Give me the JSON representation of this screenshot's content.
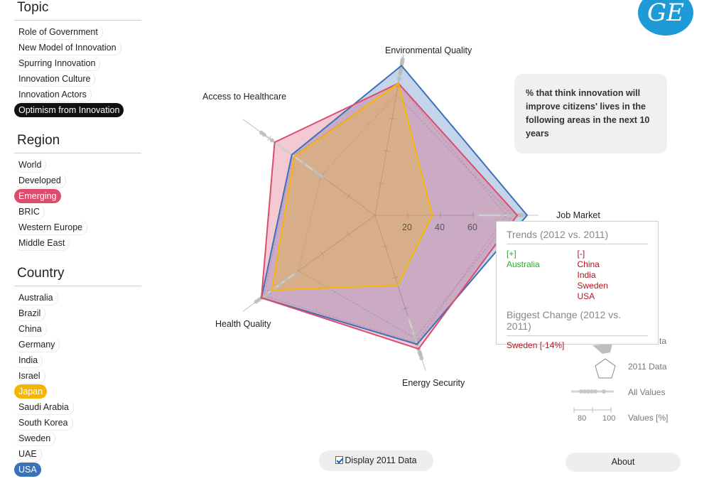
{
  "sidebar": {
    "topic_title": "Topic",
    "topics": [
      "Role of Government",
      "New Model of Innovation",
      "Spurring Innovation",
      "Innovation Culture",
      "Innovation Actors",
      "Optimism from Innovation"
    ],
    "region_title": "Region",
    "regions": [
      "World",
      "Developed",
      "Emerging",
      "BRIC",
      "Western Europe",
      "Middle East"
    ],
    "country_title": "Country",
    "countries": [
      "Australia",
      "Brazil",
      "China",
      "Germany",
      "India",
      "Israel",
      "Japan",
      "Saudi Arabia",
      "South Korea",
      "Sweden",
      "UAE",
      "USA"
    ]
  },
  "colors": {
    "topic_selected": "#111111",
    "emerging": "#dc4d6c",
    "japan": "#f5b500",
    "usa": "#3a72b8",
    "logo": "#1e9ad6"
  },
  "logo": {
    "icon": "ge-logo",
    "text": "GE"
  },
  "info_box": {
    "text": "% that think innovation will improve citizens' lives in the following areas in the next 10 years"
  },
  "chart_data": {
    "type": "radar",
    "axes": [
      "Environmental Quality",
      "Job Market",
      "Energy Security",
      "Health Quality",
      "Access to Healthcare"
    ],
    "ring_labels": [
      "20",
      "40",
      "60"
    ],
    "max": 100,
    "series": [
      {
        "name": "USA",
        "color": "#3a72b8",
        "values": [
          93,
          93,
          83,
          86,
          63
        ]
      },
      {
        "name": "Emerging",
        "color": "#dc4d6c",
        "values": [
          82,
          87,
          86,
          86,
          76
        ]
      },
      {
        "name": "Japan",
        "color": "#f5b500",
        "values": [
          82,
          35,
          45,
          78,
          61
        ]
      }
    ],
    "series_2011": [
      {
        "name": "USA",
        "color": "#3a72b8",
        "values": [
          75,
          84,
          79,
          58,
          41
        ]
      },
      {
        "name": "Emerging",
        "color": "#dc4d6c",
        "values": [
          82,
          80,
          82,
          84,
          62
        ]
      }
    ]
  },
  "tooltip": {
    "trends_title": "Trends (2012 vs. 2011)",
    "plus_header": "[+]",
    "plus_items": [
      "Australia"
    ],
    "minus_header": "[-]",
    "minus_items": [
      "China",
      "India",
      "Sweden",
      "USA"
    ],
    "change_title": "Biggest Change (2012 vs. 2011)",
    "change_value": "Sweden [-14%]"
  },
  "legend": {
    "partial": "ta",
    "data_2011": "2011 Data",
    "all_values": "All Values",
    "tick_80": "80",
    "tick_100": "100",
    "values_label": "Values [%]"
  },
  "controls": {
    "display_2011": "Display 2011 Data",
    "display_2011_checked": true,
    "about": "About"
  }
}
